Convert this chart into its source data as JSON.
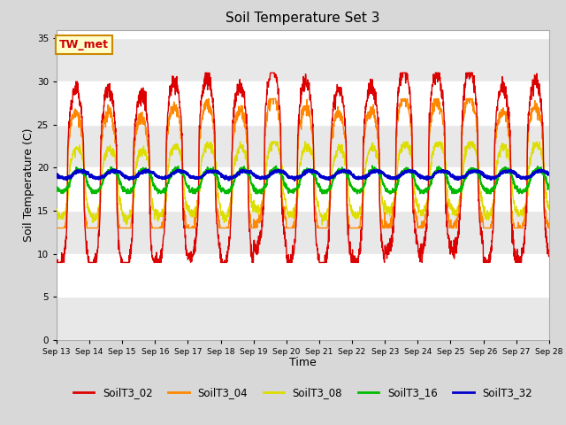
{
  "title": "Soil Temperature Set 3",
  "xlabel": "Time",
  "ylabel": "Soil Temperature (C)",
  "ylim": [
    0,
    36
  ],
  "yticks": [
    0,
    5,
    10,
    15,
    20,
    25,
    30,
    35
  ],
  "fig_bg": "#d8d8d8",
  "plot_bg": "#ffffff",
  "series": {
    "SoilT3_02": {
      "color": "#dd0000",
      "lw": 1.0
    },
    "SoilT3_04": {
      "color": "#ff8800",
      "lw": 1.0
    },
    "SoilT3_08": {
      "color": "#dddd00",
      "lw": 1.0
    },
    "SoilT3_16": {
      "color": "#00bb00",
      "lw": 1.3
    },
    "SoilT3_32": {
      "color": "#0000cc",
      "lw": 1.8
    }
  },
  "annotation": {
    "text": "TW_met",
    "fontsize": 9,
    "color": "#cc0000",
    "bg": "#ffffcc",
    "edgecolor": "#cc8800"
  },
  "start_day": 13,
  "n_days": 15,
  "points_per_day": 144
}
